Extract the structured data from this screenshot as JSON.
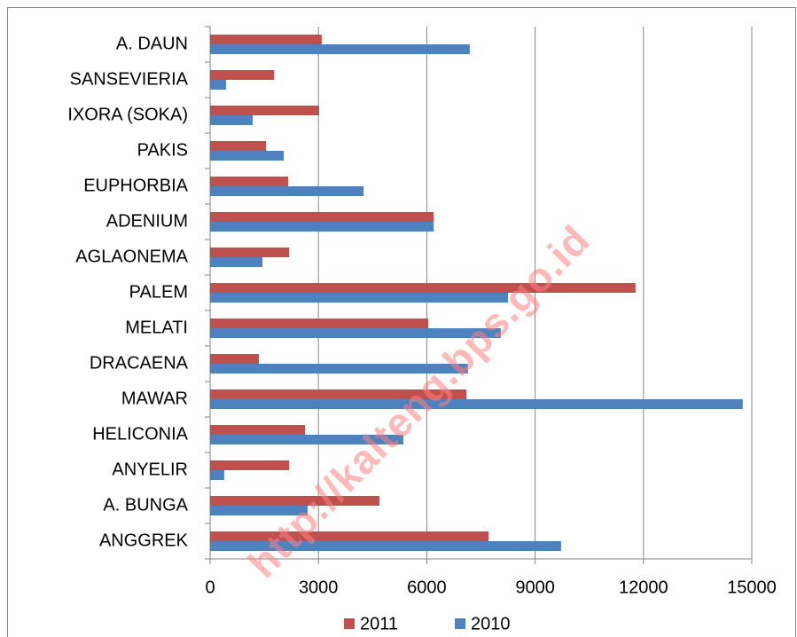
{
  "chart_data": {
    "type": "hbar",
    "categories": [
      "A. DAUN",
      "SANSEVIERIA",
      "IXORA (SOKA)",
      "PAKIS",
      "EUPHORBIA",
      "ADENIUM",
      "AGLAONEMA",
      "PALEM",
      "MELATI",
      "DRACAENA",
      "MAWAR",
      "HELICONIA",
      "ANYELIR",
      "A. BUNGA",
      "ANGGREK"
    ],
    "series": [
      {
        "name": "2011",
        "color": "#c0504d",
        "values": [
          3090,
          1770,
          3020,
          1550,
          2160,
          6190,
          2190,
          11780,
          6040,
          1350,
          7100,
          2630,
          2190,
          4690,
          7710
        ]
      },
      {
        "name": "2010",
        "color": "#4f81bd",
        "values": [
          7190,
          440,
          1180,
          2040,
          4250,
          6190,
          1450,
          8250,
          8050,
          7140,
          14750,
          5350,
          390,
          2700,
          9720
        ]
      }
    ],
    "xlim": [
      0,
      15000
    ],
    "xticks": [
      0,
      3000,
      6000,
      9000,
      12000,
      15000
    ],
    "grid": true,
    "legend": "bottom",
    "watermark": "http://kalteng.bps.go.id"
  }
}
